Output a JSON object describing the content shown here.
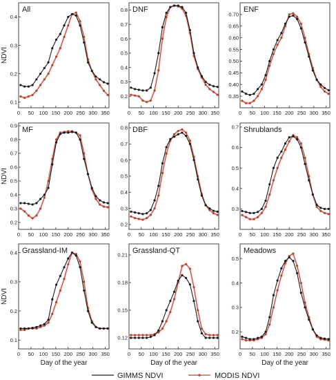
{
  "figure": {
    "legend": {
      "gimms": "GIMMS NDVI",
      "modis": "MODIS NDVI"
    },
    "colors": {
      "gimms": "#1a1a1a",
      "modis": "#b5462e",
      "modis_glow": "#f4b8c4",
      "frame": "#333333",
      "text": "#1a1a1a"
    }
  },
  "chart_data": [
    {
      "type": "line",
      "title": "All",
      "xlabel": "",
      "ylabel": "NDVI",
      "xlim": [
        0,
        365
      ],
      "xticks": [
        0,
        50,
        100,
        150,
        200,
        250,
        300,
        350
      ],
      "ylim": [
        0.08,
        0.45
      ],
      "yticks": [
        0.1,
        0.2,
        0.3,
        0.4
      ],
      "x": [
        8,
        24,
        40,
        56,
        72,
        88,
        104,
        120,
        136,
        152,
        168,
        184,
        200,
        216,
        232,
        248,
        264,
        280,
        296,
        312,
        328,
        344,
        360
      ],
      "series": [
        {
          "name": "GIMMS NDVI",
          "values": [
            0.16,
            0.155,
            0.155,
            0.16,
            0.18,
            0.2,
            0.22,
            0.24,
            0.29,
            0.32,
            0.34,
            0.37,
            0.4,
            0.41,
            0.405,
            0.37,
            0.31,
            0.24,
            0.21,
            0.19,
            0.18,
            0.17,
            0.165
          ]
        },
        {
          "name": "MODIS NDVI",
          "values": [
            0.12,
            0.115,
            0.12,
            0.125,
            0.14,
            0.16,
            0.18,
            0.2,
            0.23,
            0.26,
            0.29,
            0.33,
            0.37,
            0.41,
            0.415,
            0.385,
            0.33,
            0.25,
            0.21,
            0.18,
            0.16,
            0.14,
            0.125
          ]
        }
      ]
    },
    {
      "type": "line",
      "title": "DNF",
      "xlabel": "",
      "ylabel": "",
      "xlim": [
        0,
        365
      ],
      "xticks": [
        0,
        50,
        100,
        150,
        200,
        250,
        300,
        350
      ],
      "ylim": [
        0.12,
        0.85
      ],
      "yticks": [
        0.2,
        0.3,
        0.4,
        0.5,
        0.6,
        0.7,
        0.8
      ],
      "x": [
        8,
        24,
        40,
        56,
        72,
        88,
        104,
        120,
        136,
        152,
        168,
        184,
        200,
        216,
        232,
        248,
        264,
        280,
        296,
        312,
        328,
        344,
        360
      ],
      "series": [
        {
          "name": "GIMMS NDVI",
          "values": [
            0.26,
            0.25,
            0.245,
            0.24,
            0.24,
            0.26,
            0.36,
            0.5,
            0.68,
            0.78,
            0.82,
            0.83,
            0.83,
            0.82,
            0.78,
            0.66,
            0.5,
            0.4,
            0.34,
            0.3,
            0.28,
            0.27,
            0.265
          ]
        },
        {
          "name": "MODIS NDVI",
          "values": [
            0.21,
            0.205,
            0.2,
            0.17,
            0.16,
            0.17,
            0.24,
            0.38,
            0.6,
            0.75,
            0.82,
            0.83,
            0.825,
            0.81,
            0.76,
            0.64,
            0.48,
            0.39,
            0.33,
            0.28,
            0.25,
            0.23,
            0.21
          ]
        }
      ]
    },
    {
      "type": "line",
      "title": "ENF",
      "xlabel": "",
      "ylabel": "",
      "xlim": [
        0,
        365
      ],
      "xticks": [
        0,
        50,
        100,
        150,
        200,
        250,
        300,
        350
      ],
      "ylim": [
        0.3,
        0.75
      ],
      "yticks": [
        0.35,
        0.4,
        0.45,
        0.5,
        0.55,
        0.6,
        0.65,
        0.7
      ],
      "x": [
        8,
        24,
        40,
        56,
        72,
        88,
        104,
        120,
        136,
        152,
        168,
        184,
        200,
        216,
        232,
        248,
        264,
        280,
        296,
        312,
        328,
        344,
        360
      ],
      "series": [
        {
          "name": "GIMMS NDVI",
          "values": [
            0.37,
            0.36,
            0.355,
            0.36,
            0.38,
            0.4,
            0.44,
            0.5,
            0.55,
            0.59,
            0.62,
            0.66,
            0.69,
            0.695,
            0.68,
            0.64,
            0.58,
            0.52,
            0.46,
            0.42,
            0.4,
            0.385,
            0.375
          ]
        },
        {
          "name": "MODIS NDVI",
          "values": [
            0.33,
            0.32,
            0.32,
            0.33,
            0.35,
            0.38,
            0.42,
            0.48,
            0.53,
            0.57,
            0.6,
            0.65,
            0.7,
            0.705,
            0.69,
            0.66,
            0.6,
            0.53,
            0.47,
            0.42,
            0.39,
            0.37,
            0.36
          ]
        }
      ]
    },
    {
      "type": "line",
      "title": "MF",
      "xlabel": "",
      "ylabel": "NDVI",
      "xlim": [
        0,
        365
      ],
      "xticks": [
        0,
        50,
        100,
        150,
        200,
        250,
        300,
        350
      ],
      "ylim": [
        0.15,
        0.92
      ],
      "yticks": [
        0.2,
        0.3,
        0.4,
        0.5,
        0.6,
        0.7,
        0.8,
        0.9
      ],
      "x": [
        8,
        24,
        40,
        56,
        72,
        88,
        104,
        120,
        136,
        152,
        168,
        184,
        200,
        216,
        232,
        248,
        264,
        280,
        296,
        312,
        328,
        344,
        360
      ],
      "series": [
        {
          "name": "GIMMS NDVI",
          "values": [
            0.34,
            0.34,
            0.335,
            0.33,
            0.34,
            0.37,
            0.4,
            0.45,
            0.62,
            0.78,
            0.84,
            0.85,
            0.85,
            0.855,
            0.85,
            0.8,
            0.66,
            0.55,
            0.45,
            0.39,
            0.36,
            0.345,
            0.34
          ]
        },
        {
          "name": "MODIS NDVI",
          "values": [
            0.3,
            0.28,
            0.25,
            0.23,
            0.25,
            0.3,
            0.38,
            0.5,
            0.66,
            0.8,
            0.85,
            0.855,
            0.86,
            0.86,
            0.85,
            0.83,
            0.7,
            0.55,
            0.44,
            0.37,
            0.33,
            0.315,
            0.31
          ]
        }
      ]
    },
    {
      "type": "line",
      "title": "DBF",
      "xlabel": "",
      "ylabel": "",
      "xlim": [
        0,
        365
      ],
      "xticks": [
        0,
        50,
        100,
        150,
        200,
        250,
        300,
        350
      ],
      "ylim": [
        0.17,
        0.83
      ],
      "yticks": [
        0.2,
        0.3,
        0.4,
        0.5,
        0.6,
        0.7,
        0.8
      ],
      "x": [
        8,
        24,
        40,
        56,
        72,
        88,
        104,
        120,
        136,
        152,
        168,
        184,
        200,
        216,
        232,
        248,
        264,
        280,
        296,
        312,
        328,
        344,
        360
      ],
      "series": [
        {
          "name": "GIMMS NDVI",
          "values": [
            0.28,
            0.275,
            0.27,
            0.265,
            0.27,
            0.29,
            0.35,
            0.44,
            0.58,
            0.68,
            0.73,
            0.745,
            0.76,
            0.77,
            0.75,
            0.7,
            0.6,
            0.48,
            0.38,
            0.32,
            0.3,
            0.285,
            0.28
          ]
        },
        {
          "name": "MODIS NDVI",
          "values": [
            0.25,
            0.24,
            0.235,
            0.23,
            0.24,
            0.26,
            0.3,
            0.38,
            0.52,
            0.64,
            0.72,
            0.76,
            0.78,
            0.79,
            0.77,
            0.72,
            0.62,
            0.5,
            0.39,
            0.32,
            0.29,
            0.27,
            0.26
          ]
        }
      ]
    },
    {
      "type": "line",
      "title": "Shrublands",
      "xlabel": "",
      "ylabel": "",
      "xlim": [
        0,
        365
      ],
      "xticks": [
        0,
        50,
        100,
        150,
        200,
        250,
        300,
        350
      ],
      "ylim": [
        0.2,
        0.72
      ],
      "yticks": [
        0.3,
        0.4,
        0.5,
        0.6,
        0.7
      ],
      "x": [
        8,
        24,
        40,
        56,
        72,
        88,
        104,
        120,
        136,
        152,
        168,
        184,
        200,
        216,
        232,
        248,
        264,
        280,
        296,
        312,
        328,
        344,
        360
      ],
      "series": [
        {
          "name": "GIMMS NDVI",
          "values": [
            0.29,
            0.285,
            0.28,
            0.28,
            0.285,
            0.3,
            0.34,
            0.42,
            0.5,
            0.55,
            0.58,
            0.62,
            0.65,
            0.655,
            0.64,
            0.6,
            0.52,
            0.44,
            0.37,
            0.32,
            0.305,
            0.3,
            0.3
          ]
        },
        {
          "name": "MODIS NDVI",
          "values": [
            0.27,
            0.26,
            0.25,
            0.25,
            0.26,
            0.28,
            0.31,
            0.37,
            0.44,
            0.5,
            0.55,
            0.59,
            0.63,
            0.66,
            0.65,
            0.62,
            0.55,
            0.46,
            0.37,
            0.31,
            0.29,
            0.28,
            0.275
          ]
        }
      ]
    },
    {
      "type": "line",
      "title": "Grassland-IM",
      "xlabel": "Day of the year",
      "ylabel": "NDVI",
      "xlim": [
        0,
        365
      ],
      "xticks": [
        0,
        50,
        100,
        150,
        200,
        250,
        300,
        350
      ],
      "ylim": [
        0.07,
        0.43
      ],
      "yticks": [
        0.1,
        0.2,
        0.3,
        0.4
      ],
      "x": [
        8,
        24,
        40,
        56,
        72,
        88,
        104,
        120,
        136,
        152,
        168,
        184,
        200,
        216,
        232,
        248,
        264,
        280,
        296,
        312,
        328,
        344,
        360
      ],
      "series": [
        {
          "name": "GIMMS NDVI",
          "values": [
            0.14,
            0.14,
            0.14,
            0.142,
            0.145,
            0.15,
            0.155,
            0.17,
            0.24,
            0.29,
            0.32,
            0.35,
            0.38,
            0.4,
            0.39,
            0.35,
            0.27,
            0.2,
            0.16,
            0.145,
            0.14,
            0.14,
            0.14
          ]
        },
        {
          "name": "MODIS NDVI",
          "values": [
            0.135,
            0.135,
            0.14,
            0.14,
            0.14,
            0.145,
            0.15,
            0.16,
            0.19,
            0.23,
            0.27,
            0.31,
            0.36,
            0.4,
            0.395,
            0.37,
            0.3,
            0.21,
            0.165,
            0.145,
            0.14,
            0.14,
            0.14
          ]
        }
      ]
    },
    {
      "type": "line",
      "title": "Grassland-QT",
      "xlabel": "Day of the year",
      "ylabel": "",
      "xlim": [
        0,
        365
      ],
      "xticks": [
        0,
        50,
        100,
        150,
        200,
        250,
        300,
        350
      ],
      "ylim": [
        0.108,
        0.222
      ],
      "yticks": [
        0.12,
        0.15,
        0.18,
        0.21
      ],
      "x": [
        8,
        24,
        40,
        56,
        72,
        88,
        104,
        120,
        136,
        152,
        168,
        184,
        200,
        216,
        232,
        248,
        264,
        280,
        296,
        312,
        328,
        344,
        360
      ],
      "series": [
        {
          "name": "GIMMS NDVI",
          "values": [
            0.12,
            0.12,
            0.12,
            0.12,
            0.12,
            0.121,
            0.123,
            0.128,
            0.138,
            0.15,
            0.16,
            0.17,
            0.182,
            0.188,
            0.185,
            0.178,
            0.16,
            0.138,
            0.125,
            0.12,
            0.12,
            0.12,
            0.12
          ]
        },
        {
          "name": "MODIS NDVI",
          "values": [
            0.123,
            0.123,
            0.123,
            0.123,
            0.123,
            0.123,
            0.124,
            0.126,
            0.13,
            0.138,
            0.148,
            0.162,
            0.18,
            0.198,
            0.2,
            0.195,
            0.175,
            0.15,
            0.13,
            0.124,
            0.123,
            0.123,
            0.123
          ]
        }
      ]
    },
    {
      "type": "line",
      "title": "Meadows",
      "xlabel": "Day of the year",
      "ylabel": "",
      "xlim": [
        0,
        365
      ],
      "xticks": [
        0,
        50,
        100,
        150,
        200,
        250,
        300,
        350
      ],
      "ylim": [
        0.13,
        0.56
      ],
      "yticks": [
        0.2,
        0.3,
        0.4,
        0.5
      ],
      "x": [
        8,
        24,
        40,
        56,
        72,
        88,
        104,
        120,
        136,
        152,
        168,
        184,
        200,
        216,
        232,
        248,
        264,
        280,
        296,
        312,
        328,
        344,
        360
      ],
      "series": [
        {
          "name": "GIMMS NDVI",
          "values": [
            0.18,
            0.175,
            0.17,
            0.17,
            0.175,
            0.18,
            0.2,
            0.26,
            0.35,
            0.41,
            0.46,
            0.49,
            0.505,
            0.49,
            0.44,
            0.36,
            0.3,
            0.25,
            0.21,
            0.185,
            0.175,
            0.172,
            0.17
          ]
        },
        {
          "name": "MODIS NDVI",
          "values": [
            0.17,
            0.165,
            0.165,
            0.165,
            0.17,
            0.175,
            0.19,
            0.23,
            0.3,
            0.37,
            0.43,
            0.48,
            0.51,
            0.52,
            0.47,
            0.4,
            0.32,
            0.26,
            0.21,
            0.18,
            0.17,
            0.168,
            0.165
          ]
        }
      ]
    }
  ]
}
